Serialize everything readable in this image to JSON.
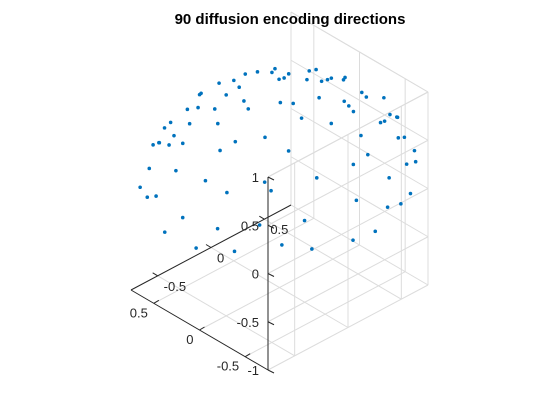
{
  "chart_data": {
    "type": "scatter",
    "title": "90 diffusion encoding directions",
    "series_color": "#0072BD",
    "grid": true,
    "box": "open-3d-axes",
    "z_ticks": [
      "1",
      "0.5",
      "0",
      "-0.5",
      "-1"
    ],
    "x_ticks": [
      "-0.5",
      "0",
      "0.5"
    ],
    "y_ticks": [
      "0.5",
      "0",
      "-0.5"
    ],
    "points": [
      [
        -0.71,
        0.22,
        0.64
      ],
      [
        -0.45,
        0.6,
        0.62
      ],
      [
        -0.15,
        0.85,
        0.55
      ],
      [
        0.25,
        0.7,
        0.62
      ],
      [
        0.55,
        0.4,
        0.69
      ],
      [
        0.72,
        0.05,
        0.69
      ],
      [
        0.6,
        -0.35,
        0.72
      ],
      [
        0.3,
        -0.65,
        0.71
      ],
      [
        -0.1,
        -0.78,
        0.62
      ],
      [
        -0.48,
        -0.55,
        0.68
      ],
      [
        -0.9,
        -0.05,
        0.43
      ],
      [
        -0.55,
        0.7,
        0.45
      ],
      [
        -0.1,
        0.95,
        0.29
      ],
      [
        0.45,
        0.78,
        0.43
      ],
      [
        0.85,
        0.35,
        0.4
      ],
      [
        0.9,
        -0.25,
        0.36
      ],
      [
        0.55,
        -0.75,
        0.37
      ],
      [
        -0.05,
        -0.95,
        0.31
      ],
      [
        -0.6,
        -0.7,
        0.39
      ],
      [
        -0.95,
        0.2,
        0.24
      ],
      [
        -0.2,
        0.2,
        0.96
      ],
      [
        0.18,
        0.15,
        0.97
      ],
      [
        0.05,
        -0.25,
        0.97
      ],
      [
        -0.3,
        -0.05,
        0.95
      ],
      [
        0.35,
        -0.2,
        0.92
      ],
      [
        -0.35,
        0.35,
        0.87
      ],
      [
        0.4,
        0.3,
        0.87
      ],
      [
        0.0,
        0.45,
        0.89
      ],
      [
        -0.1,
        -0.5,
        0.86
      ],
      [
        0.4,
        -0.5,
        0.77
      ],
      [
        -0.75,
        0.55,
        0.37
      ],
      [
        -0.3,
        0.85,
        0.43
      ],
      [
        0.15,
        0.9,
        0.41
      ],
      [
        0.65,
        0.6,
        0.46
      ],
      [
        0.95,
        0.05,
        0.31
      ],
      [
        0.8,
        -0.5,
        0.33
      ],
      [
        0.3,
        -0.9,
        0.31
      ],
      [
        -0.35,
        -0.88,
        0.32
      ],
      [
        -0.8,
        -0.45,
        0.4
      ],
      [
        -0.98,
        -0.15,
        0.12
      ],
      [
        -0.6,
        0.25,
        0.76
      ],
      [
        -0.25,
        0.6,
        0.76
      ],
      [
        0.2,
        0.45,
        0.87
      ],
      [
        0.55,
        0.15,
        0.82
      ],
      [
        0.3,
        -0.35,
        0.89
      ],
      [
        -0.05,
        -0.6,
        0.8
      ],
      [
        -0.45,
        -0.3,
        0.84
      ],
      [
        -0.7,
        -0.25,
        0.67
      ],
      [
        0.7,
        -0.15,
        0.7
      ],
      [
        0.1,
        0.7,
        0.71
      ],
      [
        -0.85,
        0.5,
        0.15
      ],
      [
        -0.45,
        0.88,
        0.15
      ],
      [
        0.3,
        0.95,
        0.1
      ],
      [
        0.75,
        0.65,
        0.12
      ],
      [
        0.98,
        -0.15,
        0.12
      ],
      [
        0.65,
        -0.75,
        0.12
      ],
      [
        0.1,
        -0.99,
        0.1
      ],
      [
        -0.5,
        -0.85,
        0.15
      ],
      [
        -0.88,
        -0.45,
        0.15
      ],
      [
        -0.99,
        0.05,
        0.1
      ],
      [
        -0.6,
        0.6,
        0.53
      ],
      [
        0.0,
        0.6,
        0.8
      ],
      [
        0.6,
        0.6,
        0.53
      ],
      [
        0.8,
        -0.05,
        0.6
      ],
      [
        0.2,
        -0.8,
        0.57
      ],
      [
        -0.3,
        -0.75,
        0.59
      ],
      [
        -0.75,
        0.05,
        0.66
      ],
      [
        0.45,
        -0.65,
        0.61
      ],
      [
        -0.85,
        0.3,
        0.43
      ],
      [
        0.85,
        -0.35,
        0.39
      ],
      [
        -0.15,
        0.0,
        0.99
      ],
      [
        0.05,
        0.3,
        0.95
      ],
      [
        -0.45,
        0.1,
        0.89
      ],
      [
        0.5,
        0.0,
        0.87
      ],
      [
        0.15,
        -0.45,
        0.88
      ],
      [
        -0.25,
        -0.35,
        0.9
      ],
      [
        0.3,
        0.6,
        0.74
      ],
      [
        -0.55,
        -0.55,
        0.63
      ],
      [
        0.65,
        0.35,
        0.67
      ],
      [
        -0.35,
        0.8,
        0.49
      ],
      [
        -0.65,
        0.72,
        0.24
      ],
      [
        0.05,
        0.99,
        0.1
      ],
      [
        0.88,
        0.42,
        0.2
      ],
      [
        0.93,
        -0.33,
        0.18
      ],
      [
        0.42,
        -0.88,
        0.22
      ],
      [
        -0.22,
        -0.97,
        0.1
      ],
      [
        -0.75,
        -0.62,
        0.22
      ],
      [
        -0.92,
        0.35,
        0.17
      ],
      [
        -0.3,
        0.35,
        0.89
      ],
      [
        0.62,
        -0.6,
        0.51
      ]
    ]
  }
}
